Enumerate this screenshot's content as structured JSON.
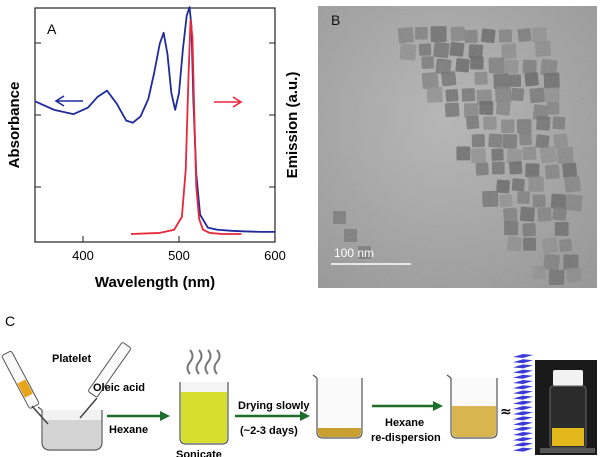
{
  "panel_a": {
    "label": "A",
    "ylabel_left": "Absorbance",
    "ylabel_right": "Emission (a.u.)",
    "xlabel": "Wavelength (nm)",
    "left_arrow_color": "#1f2b9c",
    "right_arrow_color": "#e8273a"
  },
  "panel_b": {
    "label": "B",
    "scale_bar": "100 nm"
  },
  "panel_c": {
    "label": "C",
    "platelet": "Platelet",
    "oleic_acid": "Oleic acid",
    "hexane": "Hexane",
    "sonicate": "Sonicate",
    "drying_line1": "Drying slowly",
    "drying_line2": "(~2-3 days)",
    "hexane2": "Hexane",
    "redispersion": "re-dispersion",
    "approx_symbol": "≈"
  },
  "chart_data": {
    "type": "line",
    "xlabel": "Wavelength (nm)",
    "ylabel": "Absorbance",
    "y2label": "Emission (a.u.)",
    "xlim": [
      350,
      600
    ],
    "xticks": [
      400,
      500,
      600
    ],
    "series": [
      {
        "axis": "left",
        "color": "#1f2b9c",
        "x": [
          350,
          370,
          390,
          405,
          415,
          425,
          435,
          445,
          452,
          460,
          468,
          474,
          480,
          484,
          488,
          492,
          496,
          500,
          504,
          508,
          511,
          513,
          515,
          518,
          522,
          530,
          540,
          555,
          570,
          585,
          600
        ],
        "y": [
          0.62,
          0.58,
          0.56,
          0.59,
          0.64,
          0.67,
          0.61,
          0.53,
          0.52,
          0.55,
          0.63,
          0.75,
          0.89,
          0.94,
          0.84,
          0.66,
          0.58,
          0.66,
          0.86,
          1.02,
          1.06,
          0.97,
          0.62,
          0.28,
          0.09,
          0.03,
          0.02,
          0.015,
          0.012,
          0.01,
          0.01
        ]
      },
      {
        "axis": "right",
        "color": "#e8273a",
        "x": [
          450,
          480,
          495,
          503,
          507,
          510,
          512,
          514,
          516,
          518,
          521,
          525,
          532,
          545,
          565
        ],
        "y": [
          0.0,
          0.005,
          0.02,
          0.08,
          0.3,
          0.75,
          1.0,
          0.92,
          0.55,
          0.22,
          0.07,
          0.02,
          0.005,
          0.0,
          0.0
        ]
      }
    ]
  }
}
